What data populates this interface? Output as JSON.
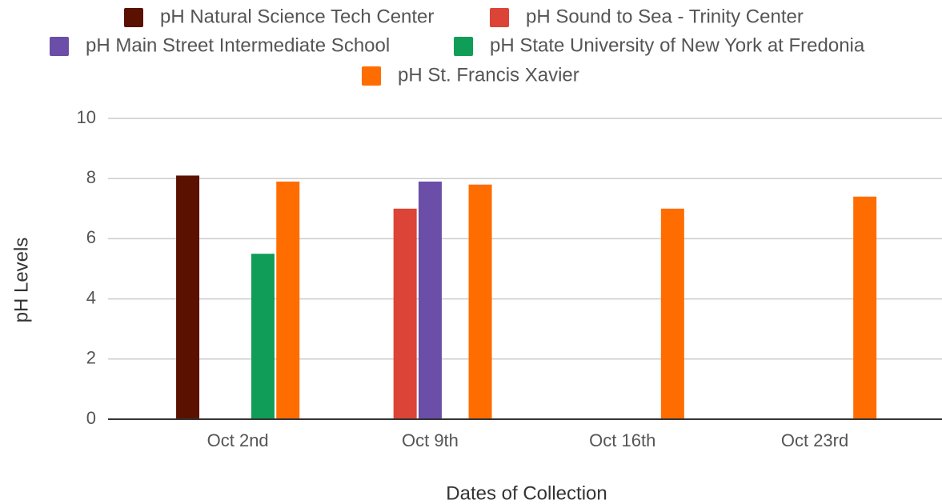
{
  "chart_data": {
    "type": "bar",
    "x_label": "Dates of Collection",
    "y_label": "pH Levels",
    "categories": [
      "Oct 2nd",
      "Oct 9th",
      "Oct 16th",
      "Oct 23rd"
    ],
    "series": [
      {
        "name": "pH Natural Science Tech Center",
        "color": "#5a1100",
        "values": [
          8.1,
          null,
          null,
          null
        ]
      },
      {
        "name": "pH Sound to Sea - Trinity Center",
        "color": "#db4437",
        "values": [
          null,
          7.0,
          null,
          null
        ]
      },
      {
        "name": "pH Main Street Intermediate School",
        "color": "#6a4ea8",
        "values": [
          null,
          7.9,
          null,
          null
        ]
      },
      {
        "name": "pH State University of New York at Fredonia",
        "color": "#0f9d58",
        "values": [
          5.5,
          null,
          null,
          null
        ]
      },
      {
        "name": "pH St. Francis Xavier",
        "color": "#ff6d00",
        "values": [
          7.9,
          7.8,
          7.0,
          7.4
        ]
      }
    ],
    "ylim": [
      0,
      10
    ],
    "yticks": [
      0,
      2,
      4,
      6,
      8,
      10
    ],
    "grid": true,
    "legend": "top"
  }
}
